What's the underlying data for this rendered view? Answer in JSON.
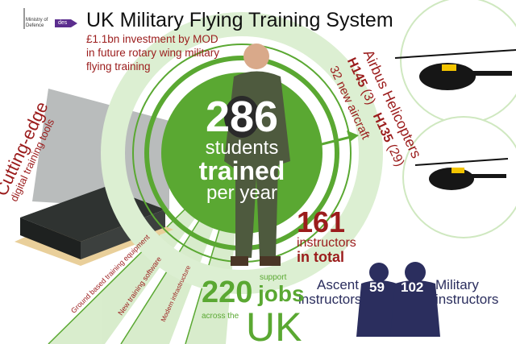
{
  "header": {
    "logo_text": "Ministry of Defence",
    "partner_logo_text": "des",
    "title": "UK Military Flying Training System",
    "subtitle_lines": [
      "£1.1bn investment by MOD",
      "in future rotary wing military",
      "flying training"
    ]
  },
  "students": {
    "number": "286",
    "line1": "students",
    "line2": "trained",
    "line3": "per year"
  },
  "tools": {
    "title": "Cutting-edge",
    "subtitle": "digital training tools"
  },
  "rays": [
    "Ground based training equipment",
    "New training software",
    "Modern infrastructure"
  ],
  "aircraft": {
    "maker": "Airbus Helicopters",
    "h145_label": "H145",
    "h145_count": "(3)",
    "h135_label": "H135",
    "h135_count": "(29)",
    "total": "32 new aircraft"
  },
  "instructors": {
    "total": "161",
    "line1": "instructors",
    "line2": "in total",
    "ascent_count": "59",
    "ascent_line1": "Ascent",
    "ascent_line2": "instructors",
    "military_count": "102",
    "military_line1": "Military",
    "military_line2": "instructors"
  },
  "jobs": {
    "number": "220",
    "support": "support",
    "jobs": "jobs",
    "across": "across the",
    "uk": "UK"
  },
  "colors": {
    "green": "#5aa832",
    "red": "#9b1c1c",
    "navy": "#2b2e5e",
    "purple": "#5b2d8e"
  }
}
